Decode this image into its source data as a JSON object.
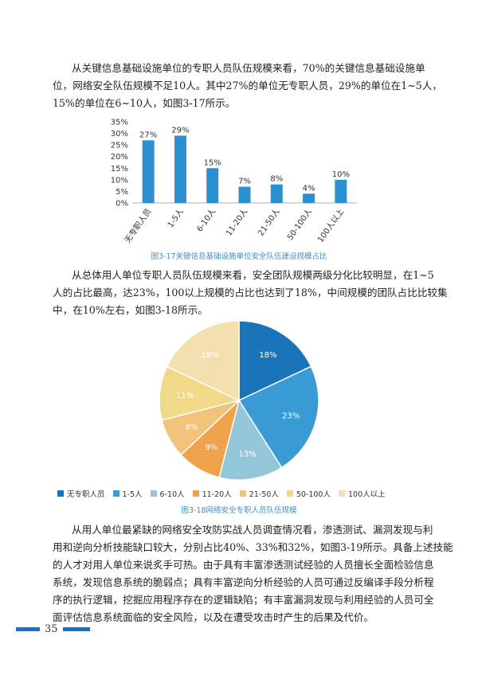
{
  "paragraphs": {
    "p1": [
      "从关键信息基础设施单位的专职人员队伍规模来看，70%的关键信息基础设施单",
      "位，网络安全队伍规模不足10人。其中27%的单位无专职人员，29%的单位在1~5人，",
      "15%的单位在6~10人，如图3-17所示。"
    ],
    "p2": [
      "从总体用人单位专职人员队伍规模来看，安全团队规模两级分化比较明显，在1~5",
      "人的占比最高，达23%，100以上规模的占比也达到了18%，中间规模的团队占比比较集",
      "中，在10%左右，如图3-18所示。"
    ],
    "p3": [
      "从用人单位最紧缺的网络安全攻防实战人员调查情况看，渗透测试、漏洞发现与利",
      "用和逆向分析技能缺口较大，分别占比40%、33%和32%，如图3-19所示。具备上述技能",
      "的人才对用人单位来说炙手可热。由于具有丰富渗透测试经验的人员擅长全面检验信息",
      "系统，发现信息系统的脆弱点；具有丰富逆向分析经验的人员可通过反编译手段分析程",
      "序的执行逻辑，挖掘应用程序存在的逻辑缺陷；有丰富漏洞发现与利用经验的人员可全",
      "面评估信息系统面临的安全风险，以及在遭受攻击时产生的后果及代价。"
    ]
  },
  "figures": {
    "fig17_caption": "图3-17关键信息基础设施单位安全队伍建设规模占比",
    "fig18_caption": "图3-18网络安全专职人员队伍规模"
  },
  "chart_data": [
    {
      "type": "bar",
      "categories": [
        "无专职人员",
        "1-5人",
        "6-10人",
        "11-20人",
        "21-50人",
        "50-100人",
        "100人以上"
      ],
      "values": [
        27,
        29,
        15,
        7,
        8,
        4,
        10
      ],
      "value_labels": [
        "27%",
        "29%",
        "15%",
        "7%",
        "8%",
        "4%",
        "10%"
      ],
      "ylim": [
        0,
        35
      ],
      "yticks": [
        "0%",
        "5%",
        "10%",
        "15%",
        "20%",
        "25%",
        "30%",
        "35%"
      ],
      "color": "#2b8fd0",
      "grid": false
    },
    {
      "type": "pie",
      "labels": [
        "无专职人员",
        "1-5人",
        "6-10人",
        "11-20人",
        "21-50人",
        "50-100人",
        "100人以上"
      ],
      "values": [
        18,
        23,
        13,
        9,
        8,
        11,
        18
      ],
      "value_labels": [
        "18%",
        "23%",
        "13%",
        "9%",
        "8%",
        "11%",
        "18%"
      ],
      "colors": [
        "#1a74b9",
        "#3a9ad3",
        "#93c6d9",
        "#eea24a",
        "#f0c27a",
        "#f1d98a",
        "#f4dfae"
      ],
      "legend_position": "bottom"
    }
  ],
  "footer": {
    "page_number": "35"
  }
}
